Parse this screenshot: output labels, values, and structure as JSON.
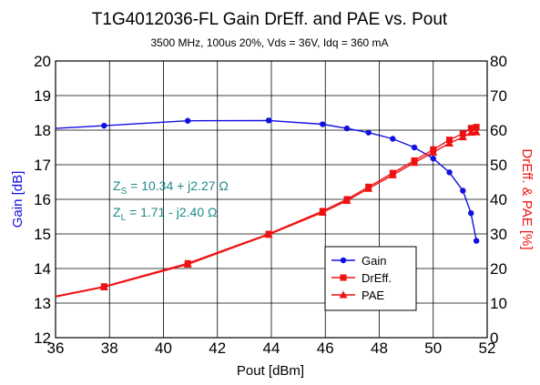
{
  "chart_data": {
    "type": "line",
    "title": "T1G4012036-FL Gain DrEff. and PAE vs. Pout",
    "subtitle": "3500 MHz, 100us 20%, Vds = 36V, Idq = 360 mA",
    "xlabel": "Pout [dBm]",
    "ylabel_left": "Gain [dB]",
    "ylabel_right": "DrEff. & PAE [%]",
    "xlim": [
      36,
      52
    ],
    "ylim_left": [
      12,
      20
    ],
    "ylim_right": [
      0,
      80
    ],
    "x_ticks": [
      "36",
      "38",
      "40",
      "42",
      "44",
      "46",
      "48",
      "50",
      "52"
    ],
    "y_left_ticks": [
      "12",
      "13",
      "14",
      "15",
      "16",
      "17",
      "18",
      "19",
      "20"
    ],
    "y_right_ticks": [
      "0",
      "10",
      "20",
      "30",
      "40",
      "50",
      "60",
      "70",
      "80"
    ],
    "grid": true,
    "legend_position": "lower-right",
    "series": [
      {
        "name": "Gain",
        "axis": "left",
        "color": "#1010e0",
        "marker": "circle",
        "x": [
          36.0,
          37.8,
          40.9,
          43.9,
          45.9,
          46.8,
          47.6,
          48.5,
          49.3,
          50.0,
          50.6,
          51.1,
          51.4,
          51.6
        ],
        "y": [
          18.05,
          18.13,
          18.27,
          18.28,
          18.17,
          18.05,
          17.93,
          17.75,
          17.5,
          17.18,
          16.78,
          16.25,
          15.6,
          14.8
        ]
      },
      {
        "name": "DrEff.",
        "axis": "right",
        "color": "#ee1111",
        "marker": "square",
        "x": [
          36.0,
          37.8,
          40.9,
          43.9,
          45.9,
          46.8,
          47.6,
          48.5,
          49.3,
          50.0,
          50.6,
          51.1,
          51.4,
          51.6
        ],
        "y": [
          12.0,
          14.8,
          21.5,
          30.0,
          36.6,
          40.0,
          43.6,
          47.6,
          51.2,
          54.4,
          57.2,
          59.0,
          60.6,
          60.9
        ]
      },
      {
        "name": "PAE",
        "axis": "right",
        "color": "#ee1111",
        "marker": "triangle",
        "x": [
          36.0,
          37.8,
          40.9,
          43.9,
          45.9,
          46.8,
          47.6,
          48.5,
          49.3,
          50.0,
          50.6,
          51.1,
          51.4,
          51.6
        ],
        "y": [
          11.8,
          14.6,
          21.2,
          29.8,
          36.2,
          39.6,
          43.1,
          47.0,
          50.6,
          53.6,
          56.2,
          58.0,
          59.3,
          59.4
        ]
      }
    ],
    "annotations": {
      "zs_prefix": "Z",
      "zs_sub": "S",
      "zs_value": " = 10.34 + j2.27  Ω",
      "zl_prefix": "Z",
      "zl_sub": "L",
      "zl_value": " =  1.71 - j2.40  Ω"
    }
  }
}
